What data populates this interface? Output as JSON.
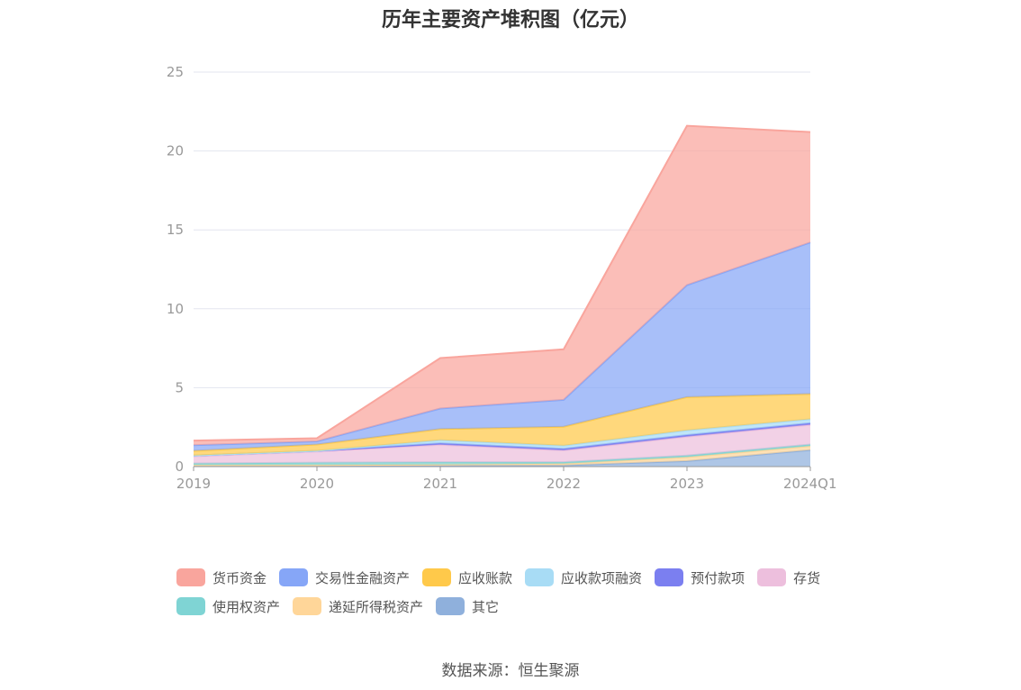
{
  "chart_data": {
    "type": "area",
    "stacked": true,
    "title": "历年主要资产堆积图（亿元）",
    "source": "数据来源：恒生聚源",
    "x": [
      "2019",
      "2020",
      "2021",
      "2022",
      "2023",
      "2024Q1"
    ],
    "ylim": [
      0,
      25
    ],
    "yticks": [
      0,
      5,
      10,
      15,
      20,
      25
    ],
    "grid": true,
    "legend_position": "bottom",
    "series": [
      {
        "name": "其它",
        "color": "#8fb0dc",
        "values": [
          0.05,
          0.05,
          0.08,
          0.08,
          0.35,
          1.05
        ]
      },
      {
        "name": "递延所得税资产",
        "color": "#ffd699",
        "values": [
          0.05,
          0.05,
          0.05,
          0.1,
          0.25,
          0.25
        ]
      },
      {
        "name": "使用权资产",
        "color": "#7fd4d4",
        "values": [
          0.1,
          0.15,
          0.15,
          0.1,
          0.1,
          0.1
        ]
      },
      {
        "name": "存货",
        "color": "#edbfdd",
        "values": [
          0.45,
          0.7,
          1.1,
          0.75,
          1.2,
          1.25
        ]
      },
      {
        "name": "预付款项",
        "color": "#7b7ff0",
        "values": [
          0.05,
          0.05,
          0.1,
          0.1,
          0.1,
          0.1
        ]
      },
      {
        "name": "应收款项融资",
        "color": "#a8dcf5",
        "values": [
          0.0,
          0.0,
          0.2,
          0.2,
          0.3,
          0.25
        ]
      },
      {
        "name": "应收账款",
        "color": "#ffc94a",
        "values": [
          0.3,
          0.4,
          0.7,
          1.2,
          2.1,
          1.6
        ]
      },
      {
        "name": "交易性金融资产",
        "color": "#86a6f7",
        "values": [
          0.35,
          0.2,
          1.3,
          1.7,
          7.1,
          9.6
        ]
      },
      {
        "name": "货币资金",
        "color": "#f9a59d",
        "values": [
          0.3,
          0.2,
          3.2,
          3.2,
          10.1,
          7.0
        ]
      }
    ],
    "legend_order": [
      "货币资金",
      "交易性金融资产",
      "应收账款",
      "应收款项融资",
      "预付款项",
      "存货",
      "使用权资产",
      "递延所得税资产",
      "其它"
    ]
  }
}
